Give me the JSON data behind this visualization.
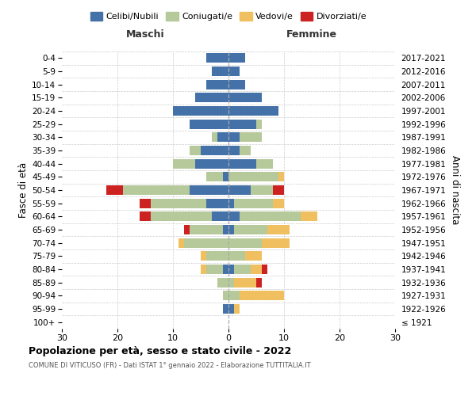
{
  "age_groups": [
    "100+",
    "95-99",
    "90-94",
    "85-89",
    "80-84",
    "75-79",
    "70-74",
    "65-69",
    "60-64",
    "55-59",
    "50-54",
    "45-49",
    "40-44",
    "35-39",
    "30-34",
    "25-29",
    "20-24",
    "15-19",
    "10-14",
    "5-9",
    "0-4"
  ],
  "birth_years": [
    "≤ 1921",
    "1922-1926",
    "1927-1931",
    "1932-1936",
    "1937-1941",
    "1942-1946",
    "1947-1951",
    "1952-1956",
    "1957-1961",
    "1962-1966",
    "1967-1971",
    "1972-1976",
    "1977-1981",
    "1982-1986",
    "1987-1991",
    "1992-1996",
    "1997-2001",
    "2002-2006",
    "2007-2011",
    "2012-2016",
    "2017-2021"
  ],
  "male_celibi": [
    0,
    1,
    0,
    0,
    1,
    0,
    0,
    1,
    3,
    4,
    7,
    1,
    6,
    5,
    2,
    7,
    10,
    6,
    4,
    3,
    4
  ],
  "male_coniugati": [
    0,
    0,
    1,
    2,
    3,
    4,
    8,
    6,
    11,
    10,
    12,
    3,
    4,
    2,
    1,
    0,
    0,
    0,
    0,
    0,
    0
  ],
  "male_vedovi": [
    0,
    0,
    0,
    0,
    1,
    1,
    1,
    0,
    0,
    0,
    0,
    0,
    0,
    0,
    0,
    0,
    0,
    0,
    0,
    0,
    0
  ],
  "male_divorziati": [
    0,
    0,
    0,
    0,
    0,
    0,
    0,
    1,
    2,
    2,
    3,
    0,
    0,
    0,
    0,
    0,
    0,
    0,
    0,
    0,
    0
  ],
  "female_nubili": [
    0,
    1,
    0,
    0,
    1,
    0,
    0,
    1,
    2,
    1,
    4,
    0,
    5,
    2,
    2,
    5,
    9,
    6,
    3,
    2,
    3
  ],
  "female_coniugate": [
    0,
    0,
    2,
    1,
    3,
    3,
    6,
    6,
    11,
    7,
    4,
    9,
    3,
    2,
    4,
    1,
    0,
    0,
    0,
    0,
    0
  ],
  "female_vedove": [
    0,
    1,
    8,
    4,
    2,
    3,
    5,
    4,
    3,
    2,
    0,
    1,
    0,
    0,
    0,
    0,
    0,
    0,
    0,
    0,
    0
  ],
  "female_divorziate": [
    0,
    0,
    0,
    1,
    1,
    0,
    0,
    0,
    0,
    0,
    2,
    0,
    0,
    0,
    0,
    0,
    0,
    0,
    0,
    0,
    0
  ],
  "color_celibi": "#4472a8",
  "color_coniugati": "#b5c99a",
  "color_vedovi": "#f0c060",
  "color_divorziati": "#cc2222",
  "xlim": 30,
  "title": "Popolazione per età, sesso e stato civile - 2022",
  "subtitle": "COMUNE DI VITICUSO (FR) - Dati ISTAT 1° gennaio 2022 - Elaborazione TUTTITALIA.IT",
  "ylabel_left": "Fasce di età",
  "ylabel_right": "Anni di nascita",
  "label_male": "Maschi",
  "label_female": "Femmine",
  "legend_labels": [
    "Celibi/Nubili",
    "Coniugati/e",
    "Vedovi/e",
    "Divorziati/e"
  ],
  "bg_color": "#ffffff"
}
